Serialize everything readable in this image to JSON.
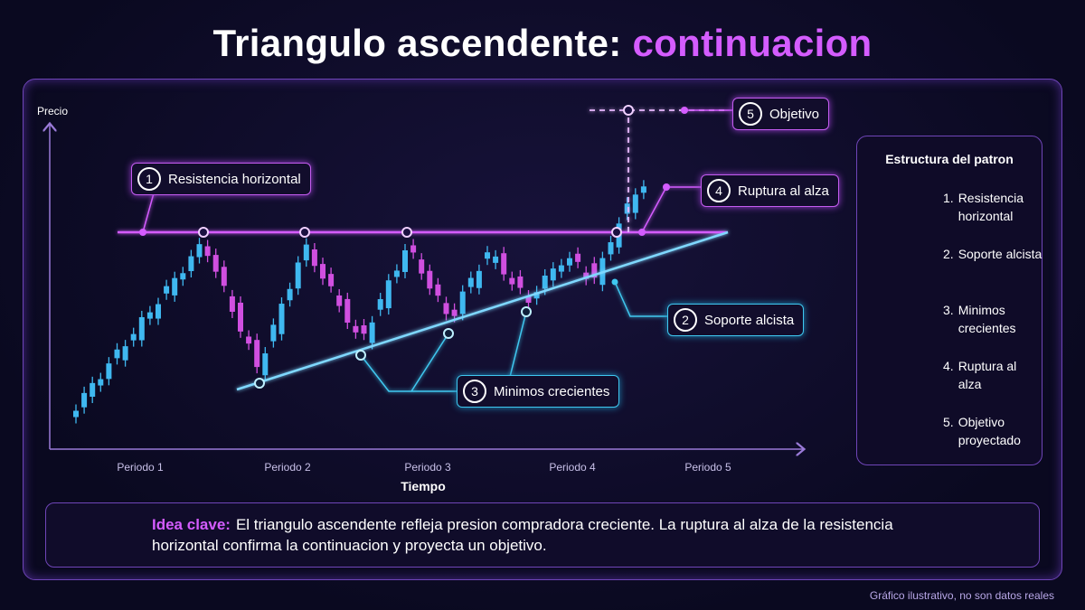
{
  "title": {
    "main": "Triangulo ascendente:",
    "highlight": "continuacion"
  },
  "axes": {
    "y_label": "Precio",
    "x_label": "Tiempo",
    "periods": [
      "Periodo 1",
      "Periodo 2",
      "Periodo 3",
      "Periodo 4",
      "Periodo 5"
    ]
  },
  "callouts": [
    {
      "number": "1",
      "label": "Resistencia horizontal"
    },
    {
      "number": "2",
      "label": "Soporte alcista"
    },
    {
      "number": "3",
      "label": "Minimos crecientes"
    },
    {
      "number": "4",
      "label": "Ruptura al alza"
    },
    {
      "number": "5",
      "label": "Objetivo"
    }
  ],
  "legend": {
    "title": "Estructura del patron",
    "items": [
      {
        "number": "1.",
        "label": "Resistencia horizontal"
      },
      {
        "number": "2.",
        "label": "Soporte alcista"
      },
      {
        "number": "3.",
        "label": "Minimos crecientes"
      },
      {
        "number": "4.",
        "label": "Ruptura al alza"
      },
      {
        "number": "5.",
        "label": "Objetivo proyectado"
      }
    ]
  },
  "key_idea": {
    "label": "Idea clave:",
    "text": "El triangulo ascendente refleja presion compradora creciente. La ruptura al alza de la resistencia horizontal confirma la continuacion y proyecta un objetivo."
  },
  "footnote": "Gráfico ilustrativo, no son datos reales"
}
